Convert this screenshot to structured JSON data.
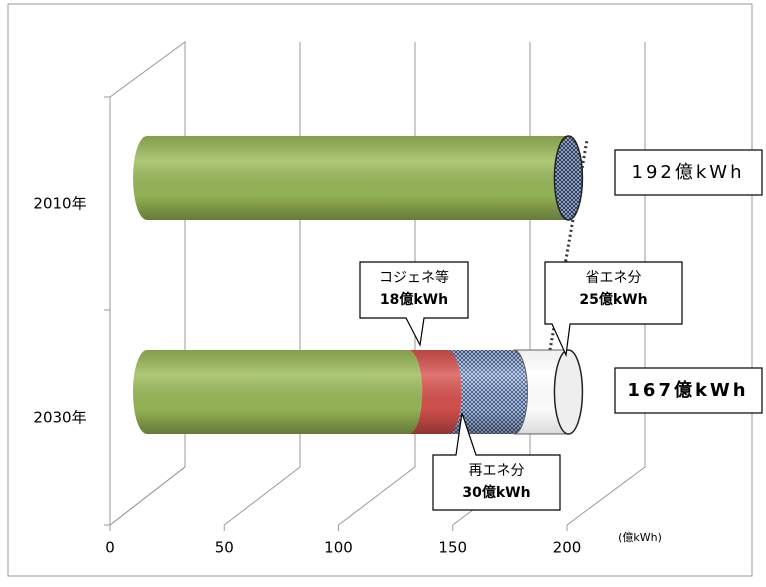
{
  "chart_data": {
    "type": "cylinder-bar",
    "categories": [
      "2010年",
      "2030年"
    ],
    "series": [
      {
        "color": "#9bbb59",
        "values": [
          192,
          119
        ]
      },
      {
        "name": "コジェネ等",
        "color": "#d9534f",
        "values": [
          null,
          18
        ],
        "value_labels": [
          null,
          "18億kWh"
        ]
      },
      {
        "name": "再エネ分",
        "color": "#4f6fa8",
        "values": [
          null,
          30
        ],
        "value_labels": [
          null,
          "30億kWh"
        ]
      },
      {
        "name": "省エネ分",
        "color": "#ffffff",
        "values": [
          null,
          25
        ],
        "value_labels": [
          null,
          "25億kWh"
        ]
      }
    ],
    "total_labels": [
      "192億kWh",
      "167億kWh"
    ],
    "x_unit": "(億kWh)",
    "xlim": [
      0,
      200
    ],
    "xticks": [
      0,
      50,
      100,
      150,
      200
    ],
    "grid": true
  }
}
